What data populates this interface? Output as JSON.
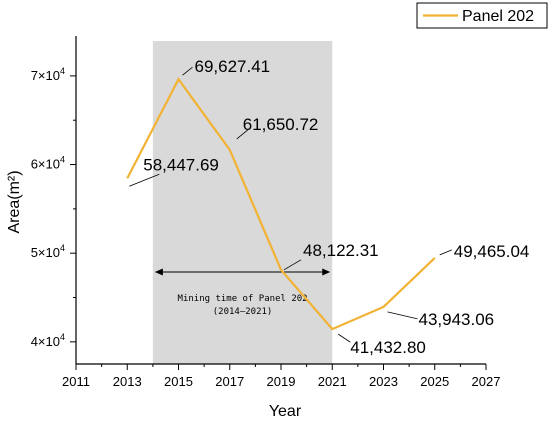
{
  "chart_data": {
    "type": "line",
    "xlabel": "Year",
    "ylabel": "Area(m²)",
    "xlim": [
      2011,
      2027
    ],
    "ylim": [
      37500,
      74500
    ],
    "x_ticks": [
      "2011",
      "2013",
      "2015",
      "2017",
      "2019",
      "2021",
      "2023",
      "2025",
      "2027"
    ],
    "y_ticks": [
      {
        "value": 40000,
        "mantissa": "4×10",
        "exp": "4"
      },
      {
        "value": 50000,
        "mantissa": "5×10",
        "exp": "4"
      },
      {
        "value": 60000,
        "mantissa": "6×10",
        "exp": "4"
      },
      {
        "value": 70000,
        "mantissa": "7×10",
        "exp": "4"
      }
    ],
    "series": [
      {
        "name": "Panel 202",
        "color": "#f2b233",
        "x": [
          2013,
          2015,
          2017,
          2019,
          2021,
          2023,
          2025
        ],
        "values": [
          58447.69,
          69627.41,
          61650.72,
          48122.31,
          41432.8,
          43943.06,
          49465.04
        ],
        "labels": [
          "58,447.69",
          "69,627.41",
          "61,650.72",
          "48,122.31",
          "41,432.80",
          "43,943.06",
          "49,465.04"
        ]
      }
    ],
    "legend": {
      "position": "top-right"
    },
    "grid": false,
    "shaded_region": {
      "x_start": 2014,
      "x_end": 2021,
      "color": "#d9d9d9",
      "line1": "Mining time of Panel 202",
      "line2": "(2014–2021)"
    }
  }
}
